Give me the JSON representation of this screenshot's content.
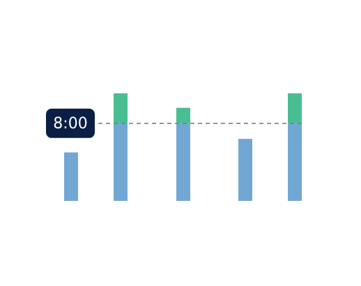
{
  "chart_data": {
    "type": "bar",
    "stacked": true,
    "target_label": "8:00",
    "target_value": 8,
    "ylim": [
      0,
      11.6
    ],
    "series": [
      {
        "values": [
          5.0,
          8.0,
          8.0,
          6.4,
          8.0
        ]
      },
      {
        "values": [
          0.0,
          3.1,
          1.6,
          0.0,
          3.1
        ]
      }
    ],
    "colors": {
      "base": "#72a7d3",
      "overtime": "#49be93",
      "target_line": "#6e7ea1",
      "badge_bg": "#0b1f45",
      "badge_text": "#ffffff"
    },
    "grid": false,
    "legend": "none"
  }
}
